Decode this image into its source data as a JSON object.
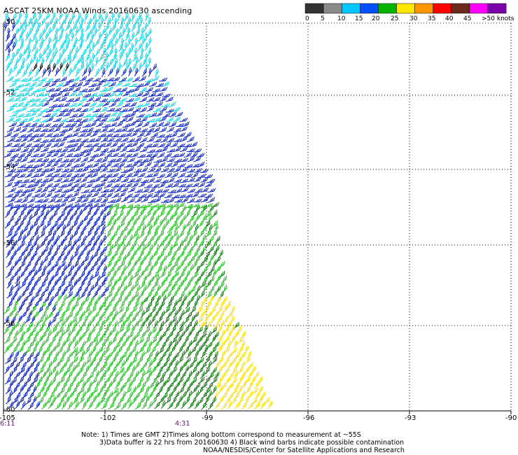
{
  "title": "ASCAT 25KM NOAA Winds 20160630 ascending",
  "legend": {
    "bins": [
      {
        "label": "0",
        "color": "#333333"
      },
      {
        "label": "5",
        "color": "#8a8a8a"
      },
      {
        "label": "10",
        "color": "#00c8ff"
      },
      {
        "label": "15",
        "color": "#0050ff"
      },
      {
        "label": "20",
        "color": "#00b400"
      },
      {
        "label": "25",
        "color": "#ffe600"
      },
      {
        "label": "30",
        "color": "#ff9600"
      },
      {
        "label": "35",
        "color": "#ff0000"
      },
      {
        "label": "40",
        "color": "#6b2a1a"
      },
      {
        "label": "45",
        "color": "#ff00ff"
      },
      {
        "label": ">50 knots",
        "color": "#7a00aa"
      }
    ],
    "extra_color": "#4a007a"
  },
  "lat_labels": [
    "-50",
    "-52",
    "-54",
    "-56",
    "-58",
    "-60"
  ],
  "lon_labels": [
    "-105",
    "-102",
    "-99",
    "-96",
    "-93",
    "-90"
  ],
  "time_labels": [
    "6:11",
    "4:31"
  ],
  "notes": [
    "Note: 1) Times are GMT 2)Times along bottom correspond to measurement at ~55S",
    "3)Data buffer is 22 hrs from 20160630 4) Black wind barbs indicate possible contamination",
    "NOAA/NESDIS/Center for Satellite Applications and Research"
  ],
  "wind_colors": {
    "cyan": "#00d8e8",
    "blue": "#0018d0",
    "green": "#20c020",
    "dark_green": "#087808",
    "yellow": "#ffe000",
    "black": "#000000"
  }
}
